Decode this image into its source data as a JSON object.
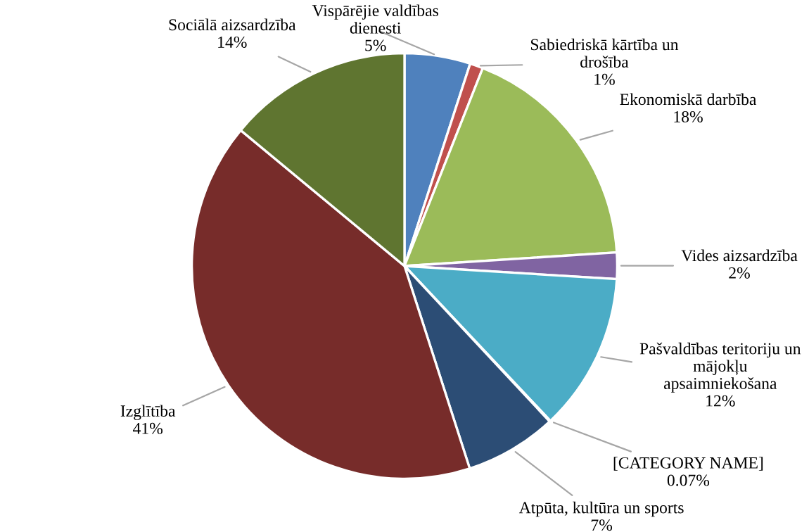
{
  "chart_data": {
    "type": "pie",
    "categories": [
      "Vispārējie valdības\ndienesti",
      "Sabiedriskā kārtība un\ndrošība",
      "Ekonomiskā darbība",
      "Vides aizsardzība",
      "Pašvaldības teritoriju un\nmājokļu\napsaimniekošana",
      "[CATEGORY NAME]",
      "Atpūta, kultūra un sports",
      "Izglītība",
      "Sociālā aizsardzība"
    ],
    "values": [
      5,
      1,
      18,
      2,
      12,
      0.07,
      7,
      41,
      14
    ],
    "value_labels": [
      "5%",
      "1%",
      "18%",
      "2%",
      "12%",
      "0.07%",
      "7%",
      "41%",
      "14%"
    ],
    "colors": [
      "#4f81bd",
      "#c0504d",
      "#9bbb59",
      "#8064a2",
      "#4bacc6",
      "#f79646",
      "#2c4d75",
      "#772c2a",
      "#5f7530"
    ]
  }
}
